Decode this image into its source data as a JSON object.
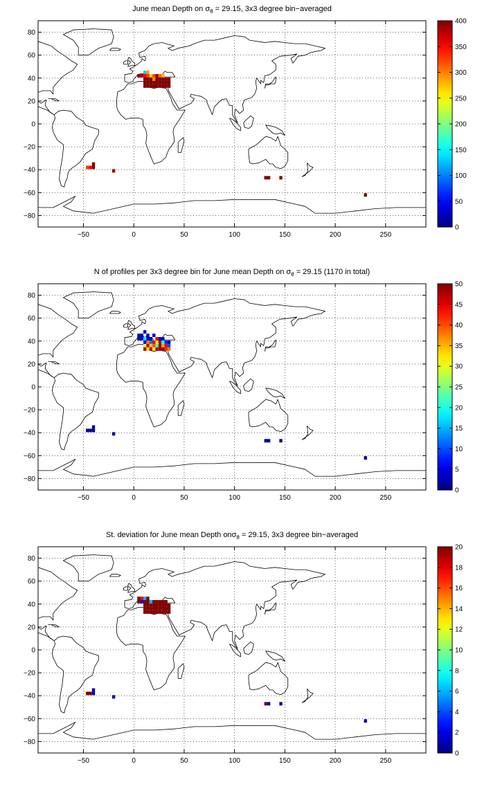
{
  "panels": [
    {
      "title_prefix": "June mean Depth on ",
      "title_symbol": "σ",
      "title_sub": "θ",
      "title_suffix": " = 29.15, 3x3 degree bin−averaged",
      "colorbar": {
        "min": 0,
        "max": 400,
        "ticks": [
          0,
          50,
          100,
          150,
          200,
          250,
          300,
          350,
          400
        ]
      }
    },
    {
      "title_prefix": "N of profiles per 3x3 degree bin for June mean Depth on ",
      "title_symbol": "σ",
      "title_sub": "θ",
      "title_suffix": " = 29.15 (1170 in total)",
      "colorbar": {
        "min": 0,
        "max": 50,
        "ticks": [
          0,
          5,
          10,
          15,
          20,
          25,
          30,
          35,
          40,
          45,
          50
        ]
      }
    },
    {
      "title_prefix": "St. deviation for June mean Depth on",
      "title_symbol": "σ",
      "title_sub": "θ",
      "title_suffix": " = 29.15, 3x3 degree bin−averaged",
      "colorbar": {
        "min": 0,
        "max": 20,
        "ticks": [
          0,
          2,
          4,
          6,
          8,
          10,
          12,
          14,
          16,
          18,
          20
        ]
      }
    }
  ],
  "chart_data": [
    {
      "type": "heatmap",
      "title": "June mean Depth on σθ = 29.15, 3x3 degree bin−averaged",
      "xlim": [
        -95,
        290
      ],
      "ylim": [
        -90,
        90
      ],
      "xticks": [
        -50,
        0,
        50,
        100,
        150,
        200,
        250
      ],
      "yticks": [
        -80,
        -60,
        -40,
        -20,
        0,
        20,
        40,
        60,
        80
      ],
      "grid": true,
      "colormap": "jet",
      "bins": [
        {
          "lon": 5,
          "lat": 42,
          "value": 400
        },
        {
          "lon": 8,
          "lat": 42,
          "value": 380
        },
        {
          "lon": 11,
          "lat": 45,
          "value": 130
        },
        {
          "lon": 14,
          "lat": 45,
          "value": 290
        },
        {
          "lon": 11,
          "lat": 42,
          "value": 350
        },
        {
          "lon": 14,
          "lat": 42,
          "value": 330
        },
        {
          "lon": 17,
          "lat": 42,
          "value": 260
        },
        {
          "lon": 20,
          "lat": 42,
          "value": 320
        },
        {
          "lon": 23,
          "lat": 42,
          "value": 390
        },
        {
          "lon": 26,
          "lat": 42,
          "value": 310
        },
        {
          "lon": 29,
          "lat": 42,
          "value": 280
        },
        {
          "lon": 11,
          "lat": 39,
          "value": 400
        },
        {
          "lon": 14,
          "lat": 39,
          "value": 400
        },
        {
          "lon": 17,
          "lat": 39,
          "value": 400
        },
        {
          "lon": 20,
          "lat": 39,
          "value": 300
        },
        {
          "lon": 23,
          "lat": 39,
          "value": 400
        },
        {
          "lon": 26,
          "lat": 39,
          "value": 400
        },
        {
          "lon": 29,
          "lat": 39,
          "value": 400
        },
        {
          "lon": 32,
          "lat": 39,
          "value": 400
        },
        {
          "lon": 35,
          "lat": 39,
          "value": 400
        },
        {
          "lon": 11,
          "lat": 36,
          "value": 400
        },
        {
          "lon": 14,
          "lat": 36,
          "value": 400
        },
        {
          "lon": 17,
          "lat": 36,
          "value": 400
        },
        {
          "lon": 20,
          "lat": 36,
          "value": 400
        },
        {
          "lon": 23,
          "lat": 36,
          "value": 400
        },
        {
          "lon": 26,
          "lat": 36,
          "value": 400
        },
        {
          "lon": 29,
          "lat": 36,
          "value": 400
        },
        {
          "lon": 32,
          "lat": 36,
          "value": 400
        },
        {
          "lon": 35,
          "lat": 36,
          "value": 400
        },
        {
          "lon": 11,
          "lat": 33,
          "value": 400
        },
        {
          "lon": 14,
          "lat": 33,
          "value": 400
        },
        {
          "lon": 17,
          "lat": 33,
          "value": 400
        },
        {
          "lon": 20,
          "lat": 33,
          "value": 400
        },
        {
          "lon": 23,
          "lat": 33,
          "value": 400
        },
        {
          "lon": 26,
          "lat": 33,
          "value": 400
        },
        {
          "lon": 29,
          "lat": 33,
          "value": 400
        },
        {
          "lon": 32,
          "lat": 33,
          "value": 400
        },
        {
          "lon": 35,
          "lat": 33,
          "value": 400
        },
        {
          "lon": -46,
          "lat": -38,
          "value": 330
        },
        {
          "lon": -43,
          "lat": -38,
          "value": 350
        },
        {
          "lon": -40,
          "lat": -35,
          "value": 400
        },
        {
          "lon": -40,
          "lat": -38,
          "value": 400
        },
        {
          "lon": -20,
          "lat": -41,
          "value": 390
        },
        {
          "lon": 131,
          "lat": -47,
          "value": 400
        },
        {
          "lon": 134,
          "lat": -47,
          "value": 400
        },
        {
          "lon": 146,
          "lat": -47,
          "value": 400
        },
        {
          "lon": 230,
          "lat": -62,
          "value": 400
        }
      ]
    },
    {
      "type": "heatmap",
      "title": "N of profiles per 3x3 degree bin for June mean Depth on σθ = 29.15 (1170 in total)",
      "xlim": [
        -95,
        290
      ],
      "ylim": [
        -90,
        90
      ],
      "xticks": [
        -50,
        0,
        50,
        100,
        150,
        200,
        250
      ],
      "yticks": [
        -80,
        -60,
        -40,
        -20,
        0,
        20,
        40,
        60,
        80
      ],
      "grid": true,
      "colormap": "jet",
      "bins": [
        {
          "lon": 5,
          "lat": 45,
          "value": 3
        },
        {
          "lon": 8,
          "lat": 45,
          "value": 2
        },
        {
          "lon": 11,
          "lat": 48,
          "value": 2
        },
        {
          "lon": 14,
          "lat": 45,
          "value": 4
        },
        {
          "lon": 5,
          "lat": 42,
          "value": 2
        },
        {
          "lon": 8,
          "lat": 42,
          "value": 5
        },
        {
          "lon": 11,
          "lat": 42,
          "value": 18
        },
        {
          "lon": 14,
          "lat": 42,
          "value": 3
        },
        {
          "lon": 17,
          "lat": 42,
          "value": 2
        },
        {
          "lon": 20,
          "lat": 45,
          "value": 3
        },
        {
          "lon": 23,
          "lat": 42,
          "value": 46
        },
        {
          "lon": 26,
          "lat": 42,
          "value": 4
        },
        {
          "lon": 29,
          "lat": 42,
          "value": 3
        },
        {
          "lon": 11,
          "lat": 39,
          "value": 6
        },
        {
          "lon": 14,
          "lat": 39,
          "value": 38
        },
        {
          "lon": 17,
          "lat": 39,
          "value": 12
        },
        {
          "lon": 20,
          "lat": 39,
          "value": 45
        },
        {
          "lon": 23,
          "lat": 39,
          "value": 32
        },
        {
          "lon": 26,
          "lat": 39,
          "value": 48
        },
        {
          "lon": 29,
          "lat": 39,
          "value": 20
        },
        {
          "lon": 32,
          "lat": 39,
          "value": 8
        },
        {
          "lon": 35,
          "lat": 39,
          "value": 3
        },
        {
          "lon": 11,
          "lat": 36,
          "value": 30
        },
        {
          "lon": 14,
          "lat": 36,
          "value": 47
        },
        {
          "lon": 17,
          "lat": 36,
          "value": 34
        },
        {
          "lon": 20,
          "lat": 36,
          "value": 40
        },
        {
          "lon": 23,
          "lat": 36,
          "value": 22
        },
        {
          "lon": 26,
          "lat": 36,
          "value": 49
        },
        {
          "lon": 29,
          "lat": 36,
          "value": 36
        },
        {
          "lon": 32,
          "lat": 36,
          "value": 44
        },
        {
          "lon": 35,
          "lat": 36,
          "value": 10
        },
        {
          "lon": 11,
          "lat": 33,
          "value": 48
        },
        {
          "lon": 14,
          "lat": 33,
          "value": 33
        },
        {
          "lon": 17,
          "lat": 33,
          "value": 47
        },
        {
          "lon": 20,
          "lat": 33,
          "value": 30
        },
        {
          "lon": 23,
          "lat": 33,
          "value": 47
        },
        {
          "lon": 26,
          "lat": 33,
          "value": 49
        },
        {
          "lon": 29,
          "lat": 33,
          "value": 48
        },
        {
          "lon": 32,
          "lat": 33,
          "value": 42
        },
        {
          "lon": 35,
          "lat": 33,
          "value": 38
        },
        {
          "lon": -46,
          "lat": -38,
          "value": 1
        },
        {
          "lon": -43,
          "lat": -38,
          "value": 1
        },
        {
          "lon": -40,
          "lat": -35,
          "value": 1
        },
        {
          "lon": -40,
          "lat": -38,
          "value": 1
        },
        {
          "lon": -20,
          "lat": -41,
          "value": 1
        },
        {
          "lon": 131,
          "lat": -47,
          "value": 1
        },
        {
          "lon": 134,
          "lat": -47,
          "value": 1
        },
        {
          "lon": 146,
          "lat": -47,
          "value": 1
        },
        {
          "lon": 230,
          "lat": -62,
          "value": 1
        }
      ]
    },
    {
      "type": "heatmap",
      "title": "St. deviation for June mean Depth on σθ = 29.15, 3x3 degree bin−averaged",
      "xlim": [
        -95,
        290
      ],
      "ylim": [
        -90,
        90
      ],
      "xticks": [
        -50,
        0,
        50,
        100,
        150,
        200,
        250
      ],
      "yticks": [
        -80,
        -60,
        -40,
        -20,
        0,
        20,
        40,
        60,
        80
      ],
      "grid": true,
      "colormap": "jet",
      "bins": [
        {
          "lon": 5,
          "lat": 45,
          "value": 20
        },
        {
          "lon": 8,
          "lat": 45,
          "value": 18
        },
        {
          "lon": 11,
          "lat": 45,
          "value": 6
        },
        {
          "lon": 14,
          "lat": 45,
          "value": 20
        },
        {
          "lon": 5,
          "lat": 42,
          "value": 20
        },
        {
          "lon": 8,
          "lat": 42,
          "value": 2
        },
        {
          "lon": 11,
          "lat": 42,
          "value": 20
        },
        {
          "lon": 14,
          "lat": 42,
          "value": 20
        },
        {
          "lon": 17,
          "lat": 42,
          "value": 6
        },
        {
          "lon": 20,
          "lat": 42,
          "value": 20
        },
        {
          "lon": 23,
          "lat": 42,
          "value": 20
        },
        {
          "lon": 26,
          "lat": 42,
          "value": 20
        },
        {
          "lon": 29,
          "lat": 42,
          "value": 20
        },
        {
          "lon": 32,
          "lat": 42,
          "value": 20
        },
        {
          "lon": 11,
          "lat": 39,
          "value": 20
        },
        {
          "lon": 14,
          "lat": 39,
          "value": 20
        },
        {
          "lon": 17,
          "lat": 39,
          "value": 20
        },
        {
          "lon": 20,
          "lat": 39,
          "value": 20
        },
        {
          "lon": 23,
          "lat": 39,
          "value": 20
        },
        {
          "lon": 26,
          "lat": 39,
          "value": 20
        },
        {
          "lon": 29,
          "lat": 39,
          "value": 20
        },
        {
          "lon": 32,
          "lat": 39,
          "value": 20
        },
        {
          "lon": 35,
          "lat": 39,
          "value": 20
        },
        {
          "lon": 11,
          "lat": 36,
          "value": 20
        },
        {
          "lon": 14,
          "lat": 36,
          "value": 20
        },
        {
          "lon": 17,
          "lat": 36,
          "value": 20
        },
        {
          "lon": 20,
          "lat": 36,
          "value": 20
        },
        {
          "lon": 23,
          "lat": 36,
          "value": 20
        },
        {
          "lon": 26,
          "lat": 36,
          "value": 20
        },
        {
          "lon": 29,
          "lat": 36,
          "value": 20
        },
        {
          "lon": 32,
          "lat": 36,
          "value": 20
        },
        {
          "lon": 35,
          "lat": 36,
          "value": 20
        },
        {
          "lon": 11,
          "lat": 33,
          "value": 20
        },
        {
          "lon": 14,
          "lat": 33,
          "value": 20
        },
        {
          "lon": 17,
          "lat": 33,
          "value": 20
        },
        {
          "lon": 20,
          "lat": 33,
          "value": 20
        },
        {
          "lon": 23,
          "lat": 33,
          "value": 20
        },
        {
          "lon": 26,
          "lat": 33,
          "value": 20
        },
        {
          "lon": 29,
          "lat": 33,
          "value": 20
        },
        {
          "lon": 32,
          "lat": 33,
          "value": 20
        },
        {
          "lon": 35,
          "lat": 33,
          "value": 20
        },
        {
          "lon": -46,
          "lat": -38,
          "value": 20
        },
        {
          "lon": -43,
          "lat": -38,
          "value": 20
        },
        {
          "lon": -40,
          "lat": -35,
          "value": 1
        },
        {
          "lon": -40,
          "lat": -38,
          "value": 1
        },
        {
          "lon": -20,
          "lat": -41,
          "value": 1
        },
        {
          "lon": 131,
          "lat": -47,
          "value": 20
        },
        {
          "lon": 134,
          "lat": -47,
          "value": 1
        },
        {
          "lon": 146,
          "lat": -47,
          "value": 1
        },
        {
          "lon": 230,
          "lat": -62,
          "value": 1
        }
      ]
    }
  ]
}
